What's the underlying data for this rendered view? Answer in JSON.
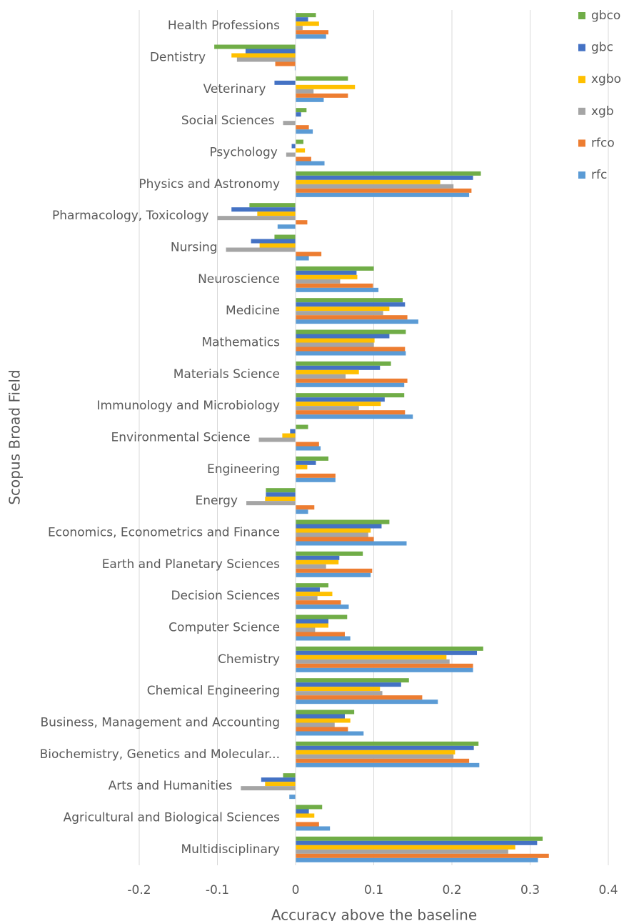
{
  "chart_data": {
    "type": "barh",
    "ylabel": "Scopus Broad Field",
    "xlabel": "Accuracy above the baseline",
    "categories": [
      "Health Professions",
      "Dentistry",
      "Veterinary",
      "Social Sciences",
      "Psychology",
      "Physics and Astronomy",
      "Pharmacology, Toxicology",
      "Nursing",
      "Neuroscience",
      "Medicine",
      "Mathematics",
      "Materials Science",
      "Immunology and Microbiology",
      "Environmental Science",
      "Engineering",
      "Energy",
      "Economics, Econometrics and Finance",
      "Earth and Planetary Sciences",
      "Decision Sciences",
      "Computer Science",
      "Chemistry",
      "Chemical Engineering",
      "Business, Management and Accounting",
      "Biochemistry, Genetics and Molecular...",
      "Arts and Humanities",
      "Agricultural and Biological Sciences",
      "Multidisciplinary"
    ],
    "series": [
      {
        "name": "gbco",
        "color": "#70ad47",
        "values": [
          0.026,
          -0.104,
          0.067,
          0.014,
          0.01,
          0.237,
          -0.059,
          -0.027,
          0.1,
          0.137,
          0.141,
          0.122,
          0.139,
          0.016,
          0.042,
          -0.038,
          0.12,
          0.086,
          0.042,
          0.066,
          0.24,
          0.145,
          0.075,
          0.234,
          -0.016,
          0.034,
          0.316
        ]
      },
      {
        "name": "gbc",
        "color": "#4472c4",
        "values": [
          0.016,
          -0.064,
          -0.027,
          0.007,
          -0.005,
          0.227,
          -0.082,
          -0.057,
          0.078,
          0.14,
          0.12,
          0.108,
          0.114,
          -0.007,
          0.026,
          -0.038,
          0.11,
          0.056,
          0.031,
          0.042,
          0.232,
          0.135,
          0.063,
          0.228,
          -0.044,
          0.017,
          0.309
        ]
      },
      {
        "name": "xgbo",
        "color": "#ffc000",
        "values": [
          0.03,
          -0.082,
          0.076,
          0,
          0.012,
          0.185,
          -0.049,
          -0.046,
          0.079,
          0.12,
          0.101,
          0.081,
          0.109,
          -0.017,
          0.015,
          -0.039,
          0.096,
          0.055,
          0.047,
          0.042,
          0.193,
          0.108,
          0.07,
          0.204,
          -0.039,
          0.024,
          0.281
        ]
      },
      {
        "name": "xgb",
        "color": "#a5a5a5",
        "values": [
          0.009,
          -0.075,
          0.023,
          -0.016,
          -0.012,
          0.202,
          -0.1,
          -0.089,
          0.057,
          0.112,
          0.1,
          0.064,
          0.081,
          -0.047,
          0,
          -0.063,
          0.093,
          0.039,
          0.028,
          0.025,
          0.197,
          0.111,
          0.05,
          0.202,
          -0.07,
          0,
          0.272
        ]
      },
      {
        "name": "rfco",
        "color": "#ed7d31",
        "values": [
          0.042,
          -0.026,
          0.067,
          0.017,
          0.02,
          0.225,
          0.015,
          0.033,
          0.099,
          0.143,
          0.14,
          0.143,
          0.14,
          0.03,
          0.051,
          0.024,
          0.1,
          0.098,
          0.058,
          0.063,
          0.227,
          0.162,
          0.067,
          0.222,
          0,
          0.03,
          0.324
        ]
      },
      {
        "name": "rfc",
        "color": "#5b9bd5",
        "values": [
          0.039,
          -0.001,
          0.036,
          0.022,
          0.037,
          0.222,
          -0.023,
          0.017,
          0.106,
          0.157,
          0.141,
          0.139,
          0.15,
          0.032,
          0.051,
          0.016,
          0.142,
          0.096,
          0.068,
          0.07,
          0.227,
          0.182,
          0.087,
          0.235,
          -0.008,
          0.044,
          0.31
        ]
      }
    ],
    "xlim": [
      -0.2,
      0.4
    ],
    "xticks": [
      -0.2,
      -0.1,
      0,
      0.1,
      0.2,
      0.3,
      0.4
    ],
    "grid": true,
    "legend": "right"
  }
}
